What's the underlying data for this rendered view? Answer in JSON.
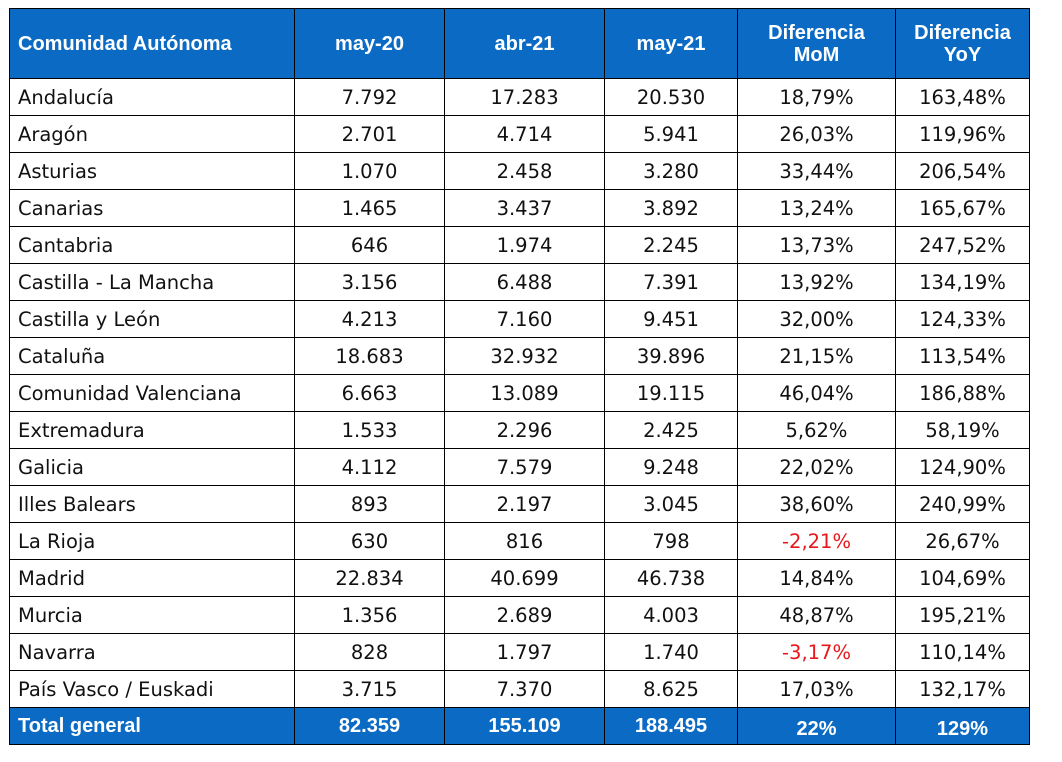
{
  "table": {
    "headers": [
      {
        "lines": [
          "Comunidad Autónoma"
        ]
      },
      {
        "lines": [
          "may-20"
        ]
      },
      {
        "lines": [
          "abr-21"
        ]
      },
      {
        "lines": [
          "may-21"
        ]
      },
      {
        "lines": [
          "Diferencia",
          "MoM"
        ]
      },
      {
        "lines": [
          "Diferencia",
          "YoY"
        ]
      }
    ],
    "rows": [
      {
        "cells": [
          "Andalucía",
          "7.792",
          "17.283",
          "20.530",
          "18,79%",
          "163,48%"
        ]
      },
      {
        "cells": [
          "Aragón",
          "2.701",
          "4.714",
          "5.941",
          "26,03%",
          "119,96%"
        ]
      },
      {
        "cells": [
          "Asturias",
          "1.070",
          "2.458",
          "3.280",
          "33,44%",
          "206,54%"
        ]
      },
      {
        "cells": [
          "Canarias",
          "1.465",
          "3.437",
          "3.892",
          "13,24%",
          "165,67%"
        ]
      },
      {
        "cells": [
          "Cantabria",
          "646",
          "1.974",
          "2.245",
          "13,73%",
          "247,52%"
        ]
      },
      {
        "cells": [
          "Castilla - La Mancha",
          "3.156",
          "6.488",
          "7.391",
          "13,92%",
          "134,19%"
        ]
      },
      {
        "cells": [
          "Castilla y León",
          "4.213",
          "7.160",
          "9.451",
          "32,00%",
          "124,33%"
        ]
      },
      {
        "cells": [
          "Cataluña",
          "18.683",
          "32.932",
          "39.896",
          "21,15%",
          "113,54%"
        ]
      },
      {
        "cells": [
          "Comunidad Valenciana",
          "6.663",
          "13.089",
          "19.115",
          "46,04%",
          "186,88%"
        ]
      },
      {
        "cells": [
          "Extremadura",
          "1.533",
          "2.296",
          "2.425",
          "5,62%",
          "58,19%"
        ]
      },
      {
        "cells": [
          "Galicia",
          "4.112",
          "7.579",
          "9.248",
          "22,02%",
          "124,90%"
        ]
      },
      {
        "cells": [
          "Illes Balears",
          "893",
          "2.197",
          "3.045",
          "38,60%",
          "240,99%"
        ]
      },
      {
        "cells": [
          "La Rioja",
          "630",
          "816",
          "798",
          "-2,21%",
          "26,67%"
        ]
      },
      {
        "cells": [
          "Madrid",
          "22.834",
          "40.699",
          "46.738",
          "14,84%",
          "104,69%"
        ]
      },
      {
        "cells": [
          "Murcia",
          "1.356",
          "2.689",
          "4.003",
          "48,87%",
          "195,21%"
        ]
      },
      {
        "cells": [
          "Navarra",
          "828",
          "1.797",
          "1.740",
          "-3,17%",
          "110,14%"
        ]
      },
      {
        "cells": [
          "País Vasco / Euskadi",
          "3.715",
          "7.370",
          "8.625",
          "17,03%",
          "132,17%"
        ]
      }
    ],
    "total": {
      "cells": [
        "Total general",
        "82.359",
        "155.109",
        "188.495",
        "22%",
        "129%"
      ]
    }
  },
  "colors": {
    "header_bg": "#0b6bc4",
    "header_text": "#ffffff",
    "negative_text": "#e8171b",
    "border": "#000000"
  }
}
